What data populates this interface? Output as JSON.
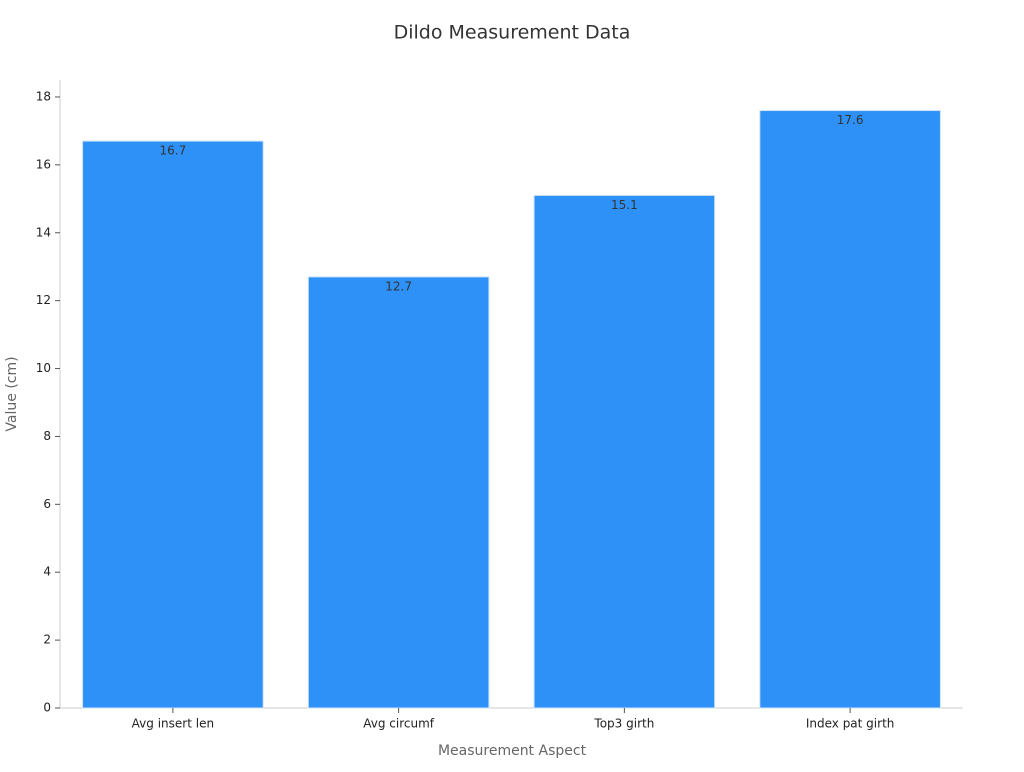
{
  "chart_data": {
    "type": "bar",
    "title": "Dildo Measurement Data",
    "x_label": "Measurement Aspect",
    "y_label": "Value (cm)",
    "categories": [
      "Avg insert len",
      "Avg circumf",
      "Top3 girth",
      "Index pat girth"
    ],
    "values": [
      16.7,
      12.7,
      15.1,
      17.6
    ],
    "color": "#2e91f7",
    "ylim": [
      0,
      18.5
    ],
    "yticks": [
      0,
      2,
      4,
      6,
      8,
      10,
      12,
      14,
      16,
      18
    ],
    "grid": false
  }
}
